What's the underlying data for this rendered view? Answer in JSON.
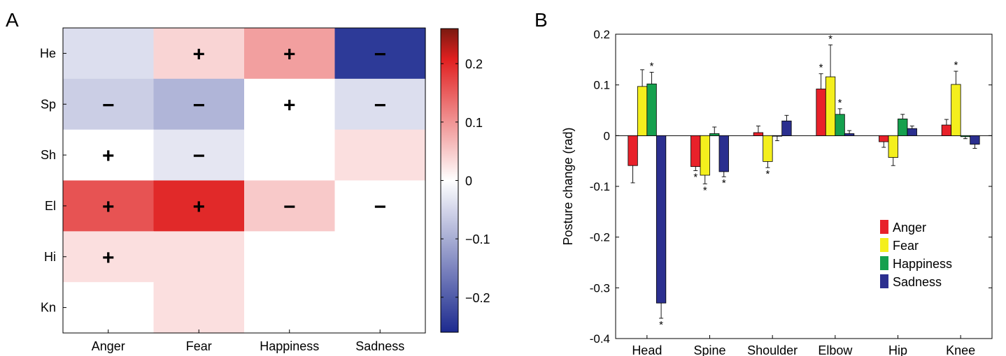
{
  "panel_a": {
    "letter": "A",
    "chart_data": {
      "type": "heatmap",
      "rows": [
        "He",
        "Sp",
        "Sh",
        "El",
        "Hi",
        "Kn"
      ],
      "columns": [
        "Anger",
        "Fear",
        "Happiness",
        "Sadness"
      ],
      "values": [
        [
          -0.04,
          0.04,
          0.09,
          -0.24
        ],
        [
          -0.06,
          -0.09,
          0.0,
          -0.04
        ],
        [
          0.0,
          -0.03,
          0.0,
          0.03
        ],
        [
          0.16,
          0.2,
          0.05,
          0.0
        ],
        [
          0.03,
          0.03,
          0.0,
          0.0
        ],
        [
          0.0,
          0.03,
          0.0,
          0.0
        ]
      ],
      "signs": [
        [
          "",
          "+",
          "+",
          "−"
        ],
        [
          "−",
          "−",
          "+",
          "−"
        ],
        [
          "+",
          "−",
          "",
          ""
        ],
        [
          "+",
          "+",
          "−",
          "−"
        ],
        [
          "+",
          "",
          "",
          ""
        ],
        [
          "",
          "",
          "",
          ""
        ]
      ],
      "colorbar": {
        "range": [
          -0.26,
          0.26
        ],
        "ticks": [
          0.2,
          0.1,
          0,
          -0.1,
          -0.2
        ],
        "tick_labels": [
          "0.2",
          "0.1",
          "0",
          "−0.1",
          "−0.2"
        ]
      },
      "colors": {
        "negative": "#1c2a8f",
        "zero": "#ffffff",
        "positive": "#e02020",
        "max": "#7a1a10"
      }
    }
  },
  "panel_b": {
    "letter": "B",
    "chart_data": {
      "type": "bar",
      "categories": [
        "Head",
        "Spine",
        "Shoulder",
        "Elbow",
        "Hip",
        "Knee"
      ],
      "series": [
        {
          "name": "Anger",
          "color": "#e8212a",
          "values": [
            -0.059,
            -0.061,
            0.006,
            0.092,
            -0.012,
            0.021
          ],
          "errors": [
            0.034,
            0.008,
            0.013,
            0.03,
            0.011,
            0.011
          ],
          "significant": [
            false,
            true,
            false,
            true,
            false,
            false
          ]
        },
        {
          "name": "Fear",
          "color": "#f4ef1d",
          "values": [
            0.097,
            -0.078,
            -0.051,
            0.116,
            -0.043,
            0.101
          ],
          "errors": [
            0.033,
            0.017,
            0.012,
            0.063,
            0.016,
            0.026
          ],
          "significant": [
            false,
            true,
            true,
            true,
            false,
            true
          ]
        },
        {
          "name": "Happiness",
          "color": "#15a04e",
          "values": [
            0.102,
            0.004,
            -0.001,
            0.042,
            0.033,
            -0.002
          ],
          "errors": [
            0.023,
            0.013,
            0.009,
            0.011,
            0.009,
            0.004
          ],
          "significant": [
            true,
            false,
            false,
            true,
            false,
            false
          ]
        },
        {
          "name": "Sadness",
          "color": "#2b2f8f",
          "values": [
            -0.33,
            -0.071,
            0.029,
            0.004,
            0.014,
            -0.017
          ],
          "errors": [
            0.03,
            0.01,
            0.011,
            0.006,
            0.005,
            0.008
          ],
          "significant": [
            true,
            true,
            false,
            false,
            false,
            false
          ]
        }
      ],
      "ylabel": "Posture change (rad)",
      "ylim": [
        -0.4,
        0.2
      ],
      "yticks": [
        0.2,
        0.1,
        0,
        -0.1,
        -0.2,
        -0.3,
        -0.4
      ],
      "ytick_labels": [
        "0.2",
        "0.1",
        "0",
        "-0.1",
        "-0.2",
        "-0.3",
        "-0.4"
      ],
      "star_symbol": "*",
      "legend_position": "lower-right"
    }
  }
}
